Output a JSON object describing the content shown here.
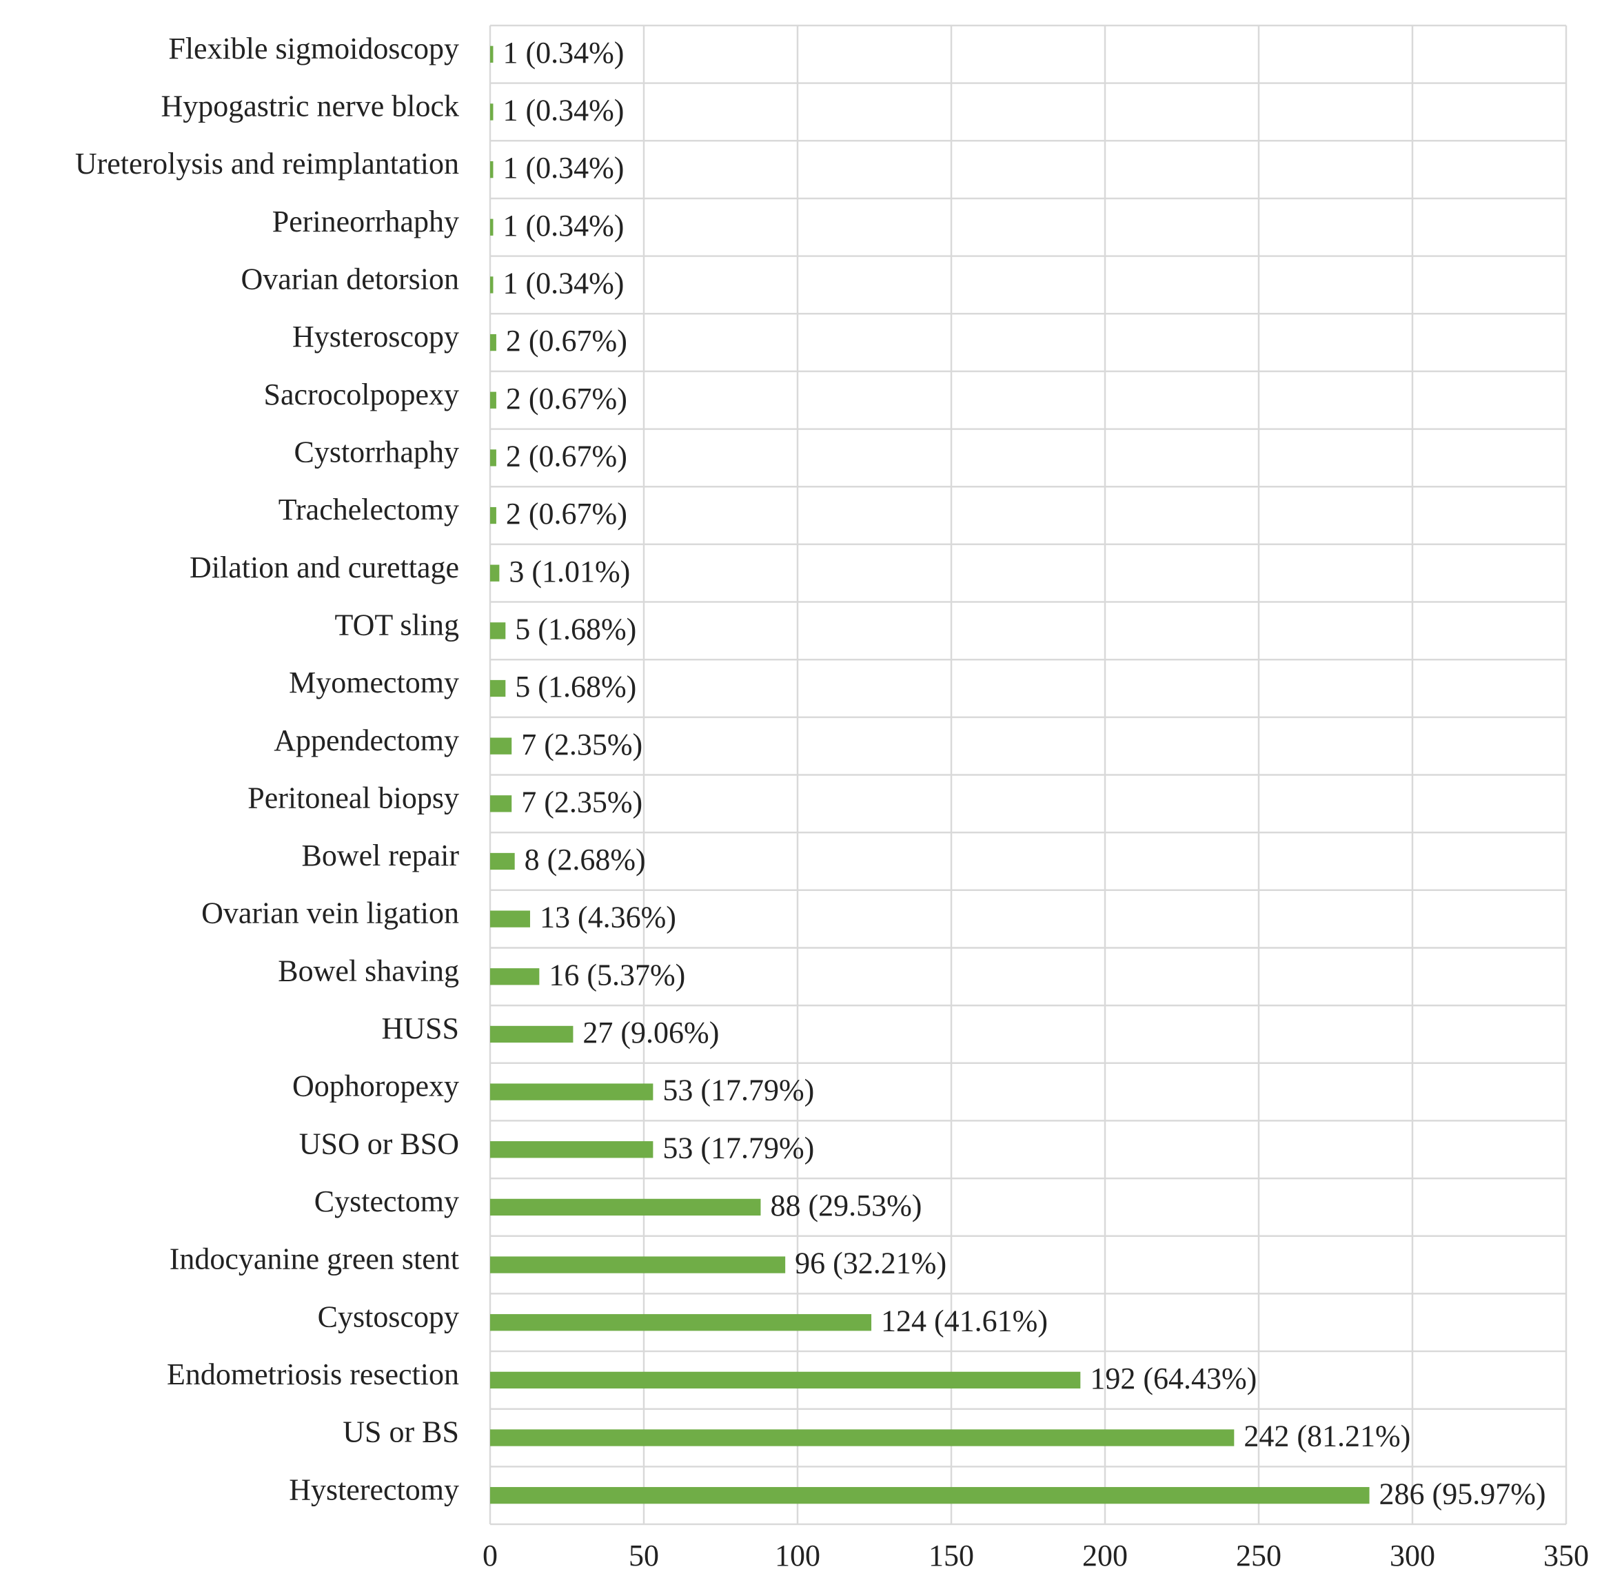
{
  "chart_data": {
    "type": "barh",
    "categories": [
      "Flexible sigmoidoscopy",
      "Hypogastric nerve block",
      "Ureterolysis and reimplantation",
      "Perineorrhaphy",
      "Ovarian detorsion",
      "Hysteroscopy",
      "Sacrocolpopexy",
      "Cystorrhaphy",
      "Trachelectomy",
      "Dilation and curettage",
      "TOT sling",
      "Myomectomy",
      "Appendectomy",
      "Peritoneal biopsy",
      "Bowel repair",
      "Ovarian vein ligation",
      "Bowel shaving",
      "HUSS",
      "Oophoropexy",
      "USO or BSO",
      "Cystectomy",
      "Indocyanine green stent",
      "Cystoscopy",
      "Endometriosis resection",
      "US or BS",
      "Hysterectomy"
    ],
    "values": [
      1,
      1,
      1,
      1,
      1,
      2,
      2,
      2,
      2,
      3,
      5,
      5,
      7,
      7,
      8,
      13,
      16,
      27,
      53,
      53,
      88,
      96,
      124,
      192,
      242,
      286
    ],
    "value_labels": [
      "1 (0.34%)",
      "1 (0.34%)",
      "1 (0.34%)",
      "1 (0.34%)",
      "1 (0.34%)",
      "2 (0.67%)",
      "2 (0.67%)",
      "2 (0.67%)",
      "2 (0.67%)",
      "3 (1.01%)",
      "5 (1.68%)",
      "5 (1.68%)",
      "7 (2.35%)",
      "7 (2.35%)",
      "8 (2.68%)",
      "13 (4.36%)",
      "16 (5.37%)",
      "27 (9.06%)",
      "53 (17.79%)",
      "53 (17.79%)",
      "88 (29.53%)",
      "96 (32.21%)",
      "124 (41.61%)",
      "192 (64.43%)",
      "242 (81.21%)",
      "286 (95.97%)"
    ],
    "color": "#70ad47",
    "xlim": [
      0,
      350
    ],
    "xticks": [
      0,
      50,
      100,
      150,
      200,
      250,
      300,
      350
    ],
    "grid": true
  }
}
